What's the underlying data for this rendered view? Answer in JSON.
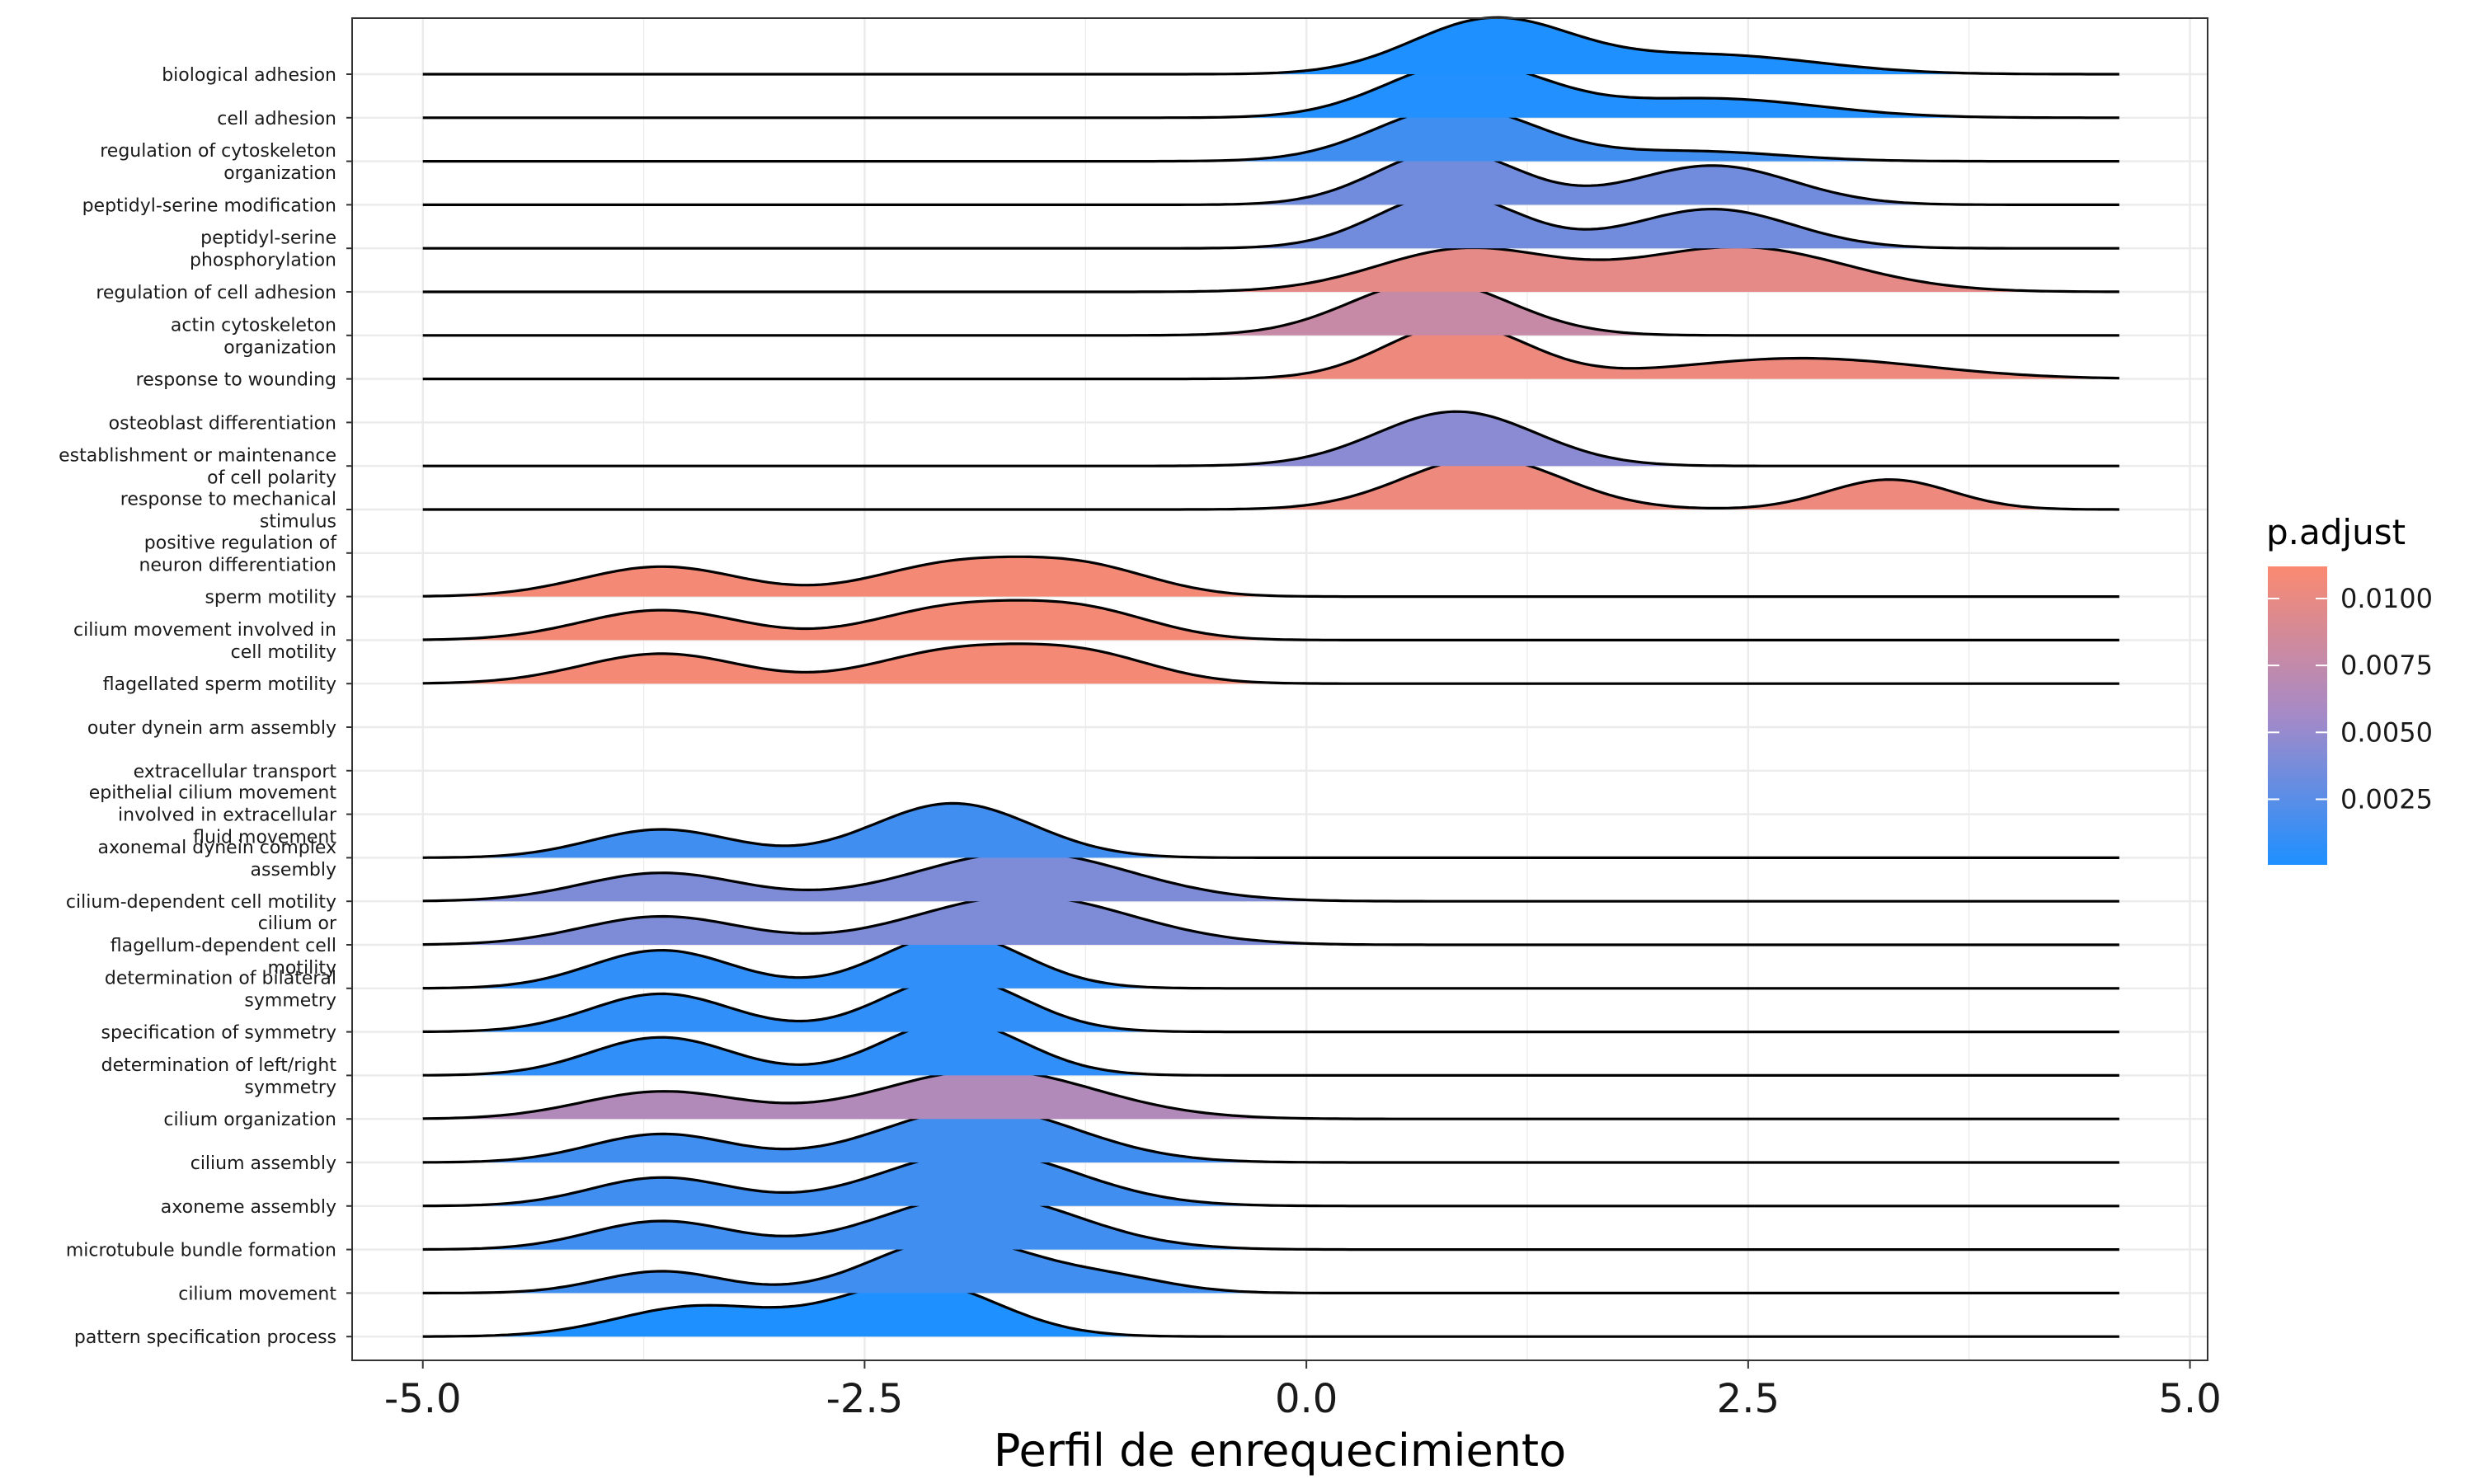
{
  "chart_data": {
    "type": "ridgeline",
    "title": "",
    "xlabel": "Perfil de enrequecimiento",
    "ylabel": "",
    "xlim": [
      -5.4,
      5.1
    ],
    "x_ticks": [
      "-5.0",
      "-2.5",
      "0.0",
      "2.5",
      "5.0"
    ],
    "x_tick_values": [
      -5.0,
      -2.5,
      0.0,
      2.5,
      5.0
    ],
    "grid": true,
    "legend": {
      "title": "p.adjust",
      "position": "right",
      "ticks": [
        "0.0100",
        "0.0075",
        "0.0050",
        "0.0025"
      ],
      "tick_values": [
        0.01,
        0.0075,
        0.005,
        0.0025
      ],
      "range": [
        5e-05,
        0.0112
      ],
      "color_low": "#1E90FF",
      "color_mid": "#A58AC8",
      "color_high": "#FA8A70"
    },
    "series": [
      {
        "label": [
          "biological adhesion"
        ],
        "p_adjust": 0.0001,
        "peaks": [
          [
            1.05,
            0.45,
            1.0
          ],
          [
            2.3,
            0.6,
            0.35
          ]
        ]
      },
      {
        "label": [
          "cell adhesion"
        ],
        "p_adjust": 0.0002,
        "peaks": [
          [
            0.9,
            0.45,
            1.0
          ],
          [
            2.3,
            0.6,
            0.35
          ]
        ]
      },
      {
        "label": [
          "regulation of cytoskeleton",
          "organization"
        ],
        "p_adjust": 0.0015,
        "peaks": [
          [
            0.85,
            0.45,
            1.0
          ],
          [
            2.2,
            0.5,
            0.18
          ]
        ]
      },
      {
        "label": [
          "peptidyl-serine modification"
        ],
        "p_adjust": 0.0035,
        "peaks": [
          [
            0.8,
            0.4,
            1.0
          ],
          [
            2.3,
            0.45,
            0.72
          ]
        ]
      },
      {
        "label": [
          "peptidyl-serine",
          "phosphorylation"
        ],
        "p_adjust": 0.0035,
        "peaks": [
          [
            0.8,
            0.4,
            1.0
          ],
          [
            2.3,
            0.45,
            0.72
          ]
        ]
      },
      {
        "label": [
          "regulation of cell adhesion"
        ],
        "p_adjust": 0.0098,
        "peaks": [
          [
            0.9,
            0.5,
            0.78
          ],
          [
            2.45,
            0.6,
            0.82
          ]
        ]
      },
      {
        "label": [
          "actin cytoskeleton",
          "organization"
        ],
        "p_adjust": 0.0078,
        "peaks": [
          [
            0.7,
            0.45,
            1.0
          ]
        ]
      },
      {
        "label": [
          "response to wounding"
        ],
        "p_adjust": 0.0104,
        "peaks": [
          [
            0.85,
            0.4,
            1.0
          ],
          [
            2.8,
            0.7,
            0.38
          ]
        ]
      },
      {
        "label": [
          "osteoblast differentiation"
        ],
        "p_adjust": null,
        "peaks": []
      },
      {
        "label": [
          "establishment or maintenance",
          "of cell polarity"
        ],
        "p_adjust": 0.0045,
        "peaks": [
          [
            0.85,
            0.45,
            1.0
          ]
        ]
      },
      {
        "label": [
          "response to mechanical",
          "stimulus"
        ],
        "p_adjust": 0.0104,
        "peaks": [
          [
            1.0,
            0.45,
            0.95
          ],
          [
            3.3,
            0.35,
            0.55
          ]
        ]
      },
      {
        "label": [
          "positive regulation of",
          "neuron differentiation"
        ],
        "p_adjust": null,
        "peaks": []
      },
      {
        "label": [
          "sperm motility"
        ],
        "p_adjust": 0.0108,
        "peaks": [
          [
            -3.65,
            0.45,
            0.55
          ],
          [
            -2.0,
            0.45,
            0.58
          ],
          [
            -1.25,
            0.4,
            0.5
          ]
        ]
      },
      {
        "label": [
          "cilium movement involved in",
          "cell motility"
        ],
        "p_adjust": 0.0108,
        "peaks": [
          [
            -3.65,
            0.45,
            0.55
          ],
          [
            -2.0,
            0.45,
            0.58
          ],
          [
            -1.25,
            0.4,
            0.5
          ]
        ]
      },
      {
        "label": [
          "flagellated sperm motility"
        ],
        "p_adjust": 0.0108,
        "peaks": [
          [
            -3.65,
            0.45,
            0.55
          ],
          [
            -2.0,
            0.45,
            0.58
          ],
          [
            -1.25,
            0.4,
            0.5
          ]
        ]
      },
      {
        "label": [
          "outer dynein arm assembly"
        ],
        "p_adjust": null,
        "peaks": []
      },
      {
        "label": [
          "extracellular transport"
        ],
        "p_adjust": null,
        "peaks": []
      },
      {
        "label": [
          "epithelial cilium movement",
          "involved in extracellular",
          "fluid movement"
        ],
        "p_adjust": null,
        "peaks": []
      },
      {
        "label": [
          "axonemal dynein complex",
          "assembly"
        ],
        "p_adjust": 0.0015,
        "peaks": [
          [
            -3.65,
            0.4,
            0.52
          ],
          [
            -2.0,
            0.45,
            1.0
          ]
        ]
      },
      {
        "label": [
          "cilium-dependent cell motility"
        ],
        "p_adjust": 0.004,
        "peaks": [
          [
            -3.65,
            0.45,
            0.52
          ],
          [
            -1.6,
            0.6,
            0.9
          ]
        ]
      },
      {
        "label": [
          "cilium or",
          "flagellum-dependent cell",
          "motility"
        ],
        "p_adjust": 0.004,
        "peaks": [
          [
            -3.65,
            0.45,
            0.52
          ],
          [
            -1.6,
            0.6,
            0.9
          ]
        ]
      },
      {
        "label": [
          "determination of bilateral",
          "symmetry"
        ],
        "p_adjust": 0.0008,
        "peaks": [
          [
            -3.65,
            0.4,
            0.7
          ],
          [
            -2.0,
            0.4,
            1.0
          ]
        ]
      },
      {
        "label": [
          "specification of symmetry"
        ],
        "p_adjust": 0.0008,
        "peaks": [
          [
            -3.65,
            0.4,
            0.7
          ],
          [
            -2.0,
            0.4,
            1.0
          ]
        ]
      },
      {
        "label": [
          "determination of left/right",
          "symmetry"
        ],
        "p_adjust": 0.0008,
        "peaks": [
          [
            -3.65,
            0.4,
            0.7
          ],
          [
            -2.0,
            0.4,
            1.0
          ]
        ]
      },
      {
        "label": [
          "cilium organization"
        ],
        "p_adjust": 0.0065,
        "peaks": [
          [
            -3.65,
            0.45,
            0.5
          ],
          [
            -1.8,
            0.6,
            0.9
          ]
        ]
      },
      {
        "label": [
          "cilium assembly"
        ],
        "p_adjust": 0.0015,
        "peaks": [
          [
            -3.65,
            0.4,
            0.52
          ],
          [
            -1.85,
            0.55,
            1.0
          ]
        ]
      },
      {
        "label": [
          "axoneme assembly"
        ],
        "p_adjust": 0.0015,
        "peaks": [
          [
            -3.65,
            0.4,
            0.52
          ],
          [
            -1.85,
            0.55,
            1.0
          ]
        ]
      },
      {
        "label": [
          "microtubule bundle formation"
        ],
        "p_adjust": 0.0015,
        "peaks": [
          [
            -3.65,
            0.4,
            0.52
          ],
          [
            -1.85,
            0.55,
            1.0
          ]
        ]
      },
      {
        "label": [
          "cilium movement"
        ],
        "p_adjust": 0.0015,
        "peaks": [
          [
            -3.65,
            0.35,
            0.4
          ],
          [
            -2.0,
            0.45,
            1.0
          ],
          [
            -1.1,
            0.35,
            0.25
          ]
        ]
      },
      {
        "label": [
          "pattern specification process"
        ],
        "p_adjust": 0.0001,
        "peaks": [
          [
            -3.45,
            0.45,
            0.55
          ],
          [
            -2.2,
            0.45,
            1.0
          ]
        ]
      }
    ]
  }
}
